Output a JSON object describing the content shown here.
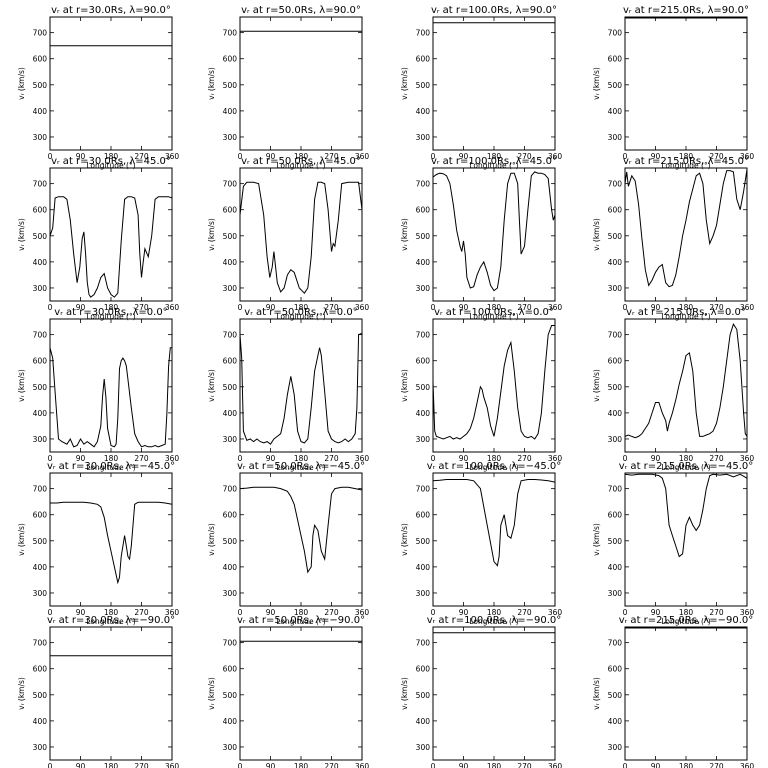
{
  "chart_data": {
    "type": "line",
    "layout": "5x4 small multiples",
    "ylim": [
      250,
      760
    ],
    "yticks": [
      "300",
      "400",
      "500",
      "600",
      "700"
    ],
    "xlim": [
      0,
      360
    ],
    "xticks": [
      "0",
      "90",
      "180",
      "270",
      "360"
    ],
    "xlabel": "Longitude (°)",
    "ylabel": "vᵣ (km/s)",
    "radii": [
      "30.0",
      "50.0",
      "100.0",
      "215.0"
    ],
    "latitudes": [
      "90.0",
      "45.0",
      "0.0",
      "−45.0",
      "−90.0"
    ],
    "panels": [
      [
        {
          "title": "vᵣ at r=30.0Rs, λ=90.0°",
          "x": [
            0,
            360
          ],
          "y": [
            650,
            650
          ]
        },
        {
          "title": "vᵣ at r=50.0Rs, λ=90.0°",
          "x": [
            0,
            360
          ],
          "y": [
            705,
            705
          ]
        },
        {
          "title": "vᵣ at r=100.0Rs, λ=90.0°",
          "x": [
            0,
            360
          ],
          "y": [
            738,
            738
          ]
        },
        {
          "title": "vᵣ at r=215.0Rs, λ=90.0°",
          "x": [
            0,
            360
          ],
          "y": [
            756,
            756
          ]
        }
      ],
      [
        {
          "title": "vᵣ at r=30.0Rs, λ=45.0°",
          "x": [
            0,
            8,
            15,
            25,
            40,
            50,
            60,
            70,
            80,
            88,
            95,
            100,
            105,
            110,
            115,
            120,
            130,
            140,
            150,
            160,
            170,
            180,
            190,
            200,
            210,
            220,
            230,
            240,
            250,
            260,
            265,
            270,
            275,
            280,
            290,
            300,
            310,
            320,
            330,
            340,
            350,
            360
          ],
          "y": [
            500,
            530,
            645,
            650,
            650,
            640,
            560,
            430,
            320,
            380,
            490,
            515,
            430,
            320,
            275,
            265,
            275,
            300,
            340,
            355,
            300,
            275,
            265,
            280,
            480,
            640,
            650,
            650,
            645,
            580,
            430,
            340,
            400,
            450,
            420,
            500,
            640,
            650,
            650,
            650,
            650,
            645
          ]
        },
        {
          "title": "vᵣ at r=50.0Rs, λ=45.0°",
          "x": [
            0,
            10,
            20,
            40,
            55,
            70,
            80,
            88,
            95,
            100,
            110,
            120,
            130,
            140,
            150,
            160,
            175,
            190,
            200,
            210,
            220,
            230,
            240,
            250,
            260,
            270,
            275,
            280,
            290,
            300,
            320,
            340,
            350,
            360
          ],
          "y": [
            580,
            690,
            705,
            705,
            700,
            580,
            420,
            340,
            380,
            440,
            320,
            285,
            300,
            350,
            370,
            360,
            300,
            280,
            300,
            420,
            640,
            705,
            705,
            700,
            600,
            440,
            470,
            460,
            560,
            700,
            705,
            705,
            705,
            600
          ]
        },
        {
          "title": "vᵣ at r=100.0Rs, λ=45.0°",
          "x": [
            0,
            10,
            20,
            30,
            40,
            50,
            60,
            70,
            80,
            85,
            90,
            95,
            100,
            110,
            120,
            130,
            140,
            150,
            160,
            170,
            180,
            190,
            200,
            210,
            220,
            230,
            240,
            250,
            255,
            260,
            270,
            280,
            290,
            300,
            310,
            320,
            330,
            340,
            350,
            355,
            360
          ],
          "y": [
            725,
            735,
            740,
            738,
            730,
            700,
            620,
            520,
            460,
            440,
            480,
            430,
            340,
            300,
            305,
            350,
            380,
            400,
            360,
            310,
            290,
            300,
            380,
            560,
            700,
            740,
            740,
            700,
            560,
            430,
            460,
            600,
            730,
            745,
            740,
            740,
            735,
            720,
            600,
            560,
            580
          ]
        },
        {
          "title": "vᵣ at r=215.0Rs, λ=45.0°",
          "x": [
            0,
            5,
            10,
            20,
            30,
            40,
            50,
            60,
            70,
            80,
            90,
            100,
            110,
            120,
            130,
            140,
            150,
            160,
            170,
            180,
            190,
            200,
            210,
            220,
            230,
            240,
            250,
            260,
            270,
            280,
            290,
            300,
            310,
            320,
            330,
            340,
            350,
            360
          ],
          "y": [
            700,
            745,
            690,
            730,
            710,
            620,
            490,
            370,
            310,
            330,
            360,
            380,
            390,
            320,
            305,
            310,
            350,
            420,
            500,
            560,
            630,
            680,
            730,
            740,
            700,
            560,
            470,
            500,
            540,
            620,
            700,
            750,
            750,
            745,
            640,
            600,
            670,
            755
          ]
        }
      ],
      [
        {
          "title": "vᵣ at r=30.0Rs, λ=0.0°",
          "x": [
            0,
            8,
            15,
            25,
            35,
            50,
            60,
            70,
            80,
            90,
            100,
            110,
            120,
            130,
            140,
            150,
            155,
            160,
            165,
            170,
            180,
            190,
            195,
            200,
            205,
            210,
            215,
            220,
            225,
            230,
            240,
            250,
            260,
            270,
            280,
            290,
            300,
            310,
            320,
            330,
            340,
            345,
            350,
            355,
            360
          ],
          "y": [
            650,
            610,
            480,
            300,
            290,
            280,
            300,
            270,
            275,
            300,
            280,
            290,
            280,
            270,
            290,
            350,
            460,
            530,
            460,
            340,
            275,
            270,
            280,
            380,
            570,
            600,
            610,
            600,
            580,
            530,
            420,
            320,
            290,
            270,
            275,
            270,
            270,
            275,
            270,
            275,
            280,
            400,
            580,
            650,
            650
          ]
        },
        {
          "title": "vᵣ at r=50.0Rs, λ=0.0°",
          "x": [
            0,
            5,
            10,
            20,
            30,
            40,
            50,
            60,
            70,
            80,
            90,
            100,
            110,
            120,
            130,
            140,
            150,
            160,
            170,
            180,
            190,
            200,
            210,
            220,
            230,
            235,
            240,
            250,
            260,
            270,
            280,
            290,
            300,
            310,
            320,
            330,
            340,
            345,
            350,
            360
          ],
          "y": [
            700,
            610,
            330,
            295,
            300,
            290,
            300,
            290,
            285,
            290,
            280,
            300,
            310,
            320,
            380,
            470,
            540,
            470,
            330,
            290,
            285,
            300,
            420,
            560,
            620,
            650,
            620,
            480,
            330,
            300,
            290,
            285,
            290,
            300,
            290,
            300,
            320,
            420,
            700,
            705
          ]
        },
        {
          "title": "vᵣ at r=100.0Rs, λ=0.0°",
          "x": [
            0,
            5,
            10,
            20,
            30,
            40,
            50,
            60,
            70,
            80,
            90,
            100,
            110,
            120,
            130,
            140,
            145,
            150,
            160,
            170,
            180,
            190,
            200,
            210,
            220,
            230,
            240,
            250,
            260,
            270,
            280,
            290,
            300,
            310,
            320,
            330,
            340,
            350,
            360
          ],
          "y": [
            520,
            330,
            310,
            305,
            300,
            305,
            310,
            300,
            305,
            300,
            310,
            320,
            340,
            380,
            440,
            500,
            490,
            460,
            420,
            350,
            310,
            380,
            480,
            580,
            640,
            670,
            560,
            420,
            330,
            310,
            305,
            310,
            300,
            320,
            400,
            560,
            700,
            735,
            735
          ]
        },
        {
          "title": "vᵣ at r=215.0Rs, λ=0.0°",
          "x": [
            0,
            10,
            20,
            30,
            40,
            50,
            60,
            70,
            80,
            90,
            100,
            110,
            120,
            125,
            130,
            140,
            150,
            160,
            170,
            180,
            190,
            200,
            210,
            220,
            230,
            240,
            250,
            260,
            270,
            280,
            290,
            300,
            310,
            320,
            330,
            340,
            350,
            355,
            360
          ],
          "y": [
            310,
            315,
            310,
            305,
            310,
            320,
            340,
            360,
            400,
            440,
            440,
            400,
            370,
            330,
            360,
            400,
            450,
            510,
            560,
            620,
            630,
            560,
            400,
            310,
            310,
            315,
            320,
            330,
            360,
            420,
            500,
            600,
            700,
            740,
            720,
            600,
            400,
            320,
            310
          ]
        }
      ],
      [
        {
          "title": "vᵣ at r=30.0Rs, λ=−45.0°",
          "x": [
            0,
            20,
            40,
            60,
            80,
            100,
            120,
            140,
            150,
            160,
            170,
            180,
            190,
            200,
            205,
            210,
            220,
            225,
            230,
            235,
            240,
            250,
            260,
            280,
            300,
            320,
            340,
            360
          ],
          "y": [
            645,
            645,
            648,
            648,
            648,
            648,
            645,
            640,
            630,
            590,
            520,
            460,
            400,
            340,
            360,
            440,
            520,
            480,
            440,
            430,
            480,
            640,
            648,
            648,
            648,
            648,
            645,
            640
          ]
        },
        {
          "title": "vᵣ at r=50.0Rs, λ=−45.0°",
          "x": [
            0,
            20,
            40,
            60,
            80,
            100,
            120,
            140,
            150,
            160,
            170,
            180,
            190,
            200,
            210,
            215,
            220,
            230,
            240,
            250,
            260,
            270,
            280,
            300,
            320,
            340,
            360
          ],
          "y": [
            700,
            702,
            705,
            705,
            705,
            705,
            700,
            690,
            670,
            640,
            580,
            520,
            460,
            380,
            400,
            520,
            560,
            540,
            460,
            430,
            560,
            680,
            700,
            705,
            705,
            700,
            695
          ]
        },
        {
          "title": "vᵣ at r=100.0Rs, λ=−45.0°",
          "x": [
            0,
            20,
            40,
            60,
            80,
            100,
            120,
            140,
            150,
            160,
            170,
            180,
            190,
            195,
            200,
            210,
            220,
            230,
            240,
            250,
            260,
            280,
            300,
            320,
            340,
            360
          ],
          "y": [
            730,
            732,
            735,
            735,
            735,
            735,
            730,
            700,
            630,
            560,
            490,
            420,
            405,
            440,
            560,
            600,
            520,
            510,
            560,
            680,
            730,
            735,
            735,
            733,
            730,
            725
          ]
        },
        {
          "title": "vᵣ at r=215.0Rs, λ=−45.0°",
          "x": [
            0,
            20,
            40,
            60,
            80,
            100,
            110,
            120,
            130,
            140,
            150,
            160,
            170,
            180,
            190,
            200,
            210,
            220,
            230,
            240,
            250,
            260,
            280,
            300,
            320,
            340,
            360
          ],
          "y": [
            755,
            752,
            755,
            755,
            755,
            750,
            740,
            700,
            560,
            520,
            480,
            440,
            450,
            560,
            590,
            560,
            540,
            560,
            620,
            700,
            750,
            755,
            752,
            755,
            745,
            755,
            740
          ]
        }
      ],
      [
        {
          "title": "vᵣ at r=30.0Rs, λ=−90.0°",
          "x": [
            0,
            360
          ],
          "y": [
            650,
            650
          ]
        },
        {
          "title": "vᵣ at r=50.0Rs, λ=−90.0°",
          "x": [
            0,
            360
          ],
          "y": [
            705,
            705
          ]
        },
        {
          "title": "vᵣ at r=100.0Rs, λ=−90.0°",
          "x": [
            0,
            360
          ],
          "y": [
            738,
            738
          ]
        },
        {
          "title": "vᵣ at r=215.0Rs, λ=−90.0°",
          "x": [
            0,
            360
          ],
          "y": [
            756,
            756
          ]
        }
      ]
    ]
  }
}
